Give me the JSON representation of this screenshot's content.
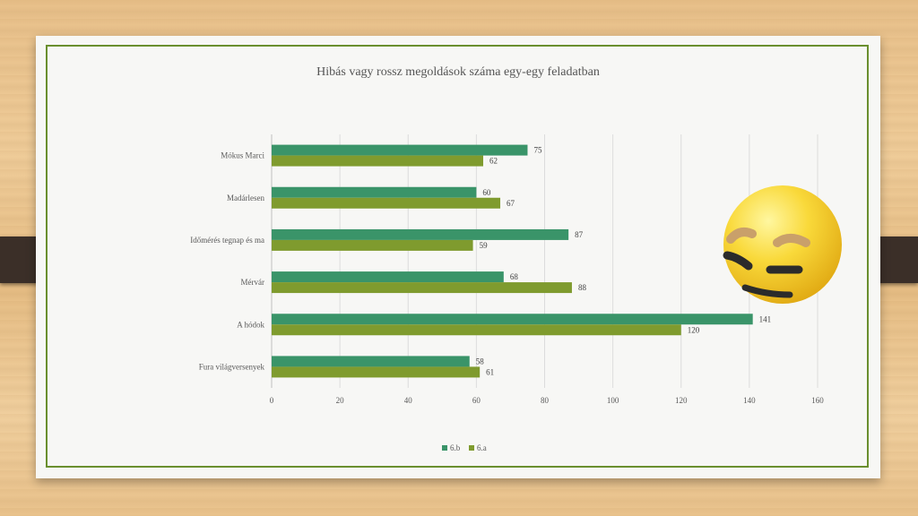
{
  "chart_data": {
    "type": "bar",
    "orientation": "horizontal",
    "title": "Hibás vagy rossz megoldások száma egy-egy feladatban",
    "categories": [
      "Mókus Marci",
      "Madárlesen",
      "Időmérés tegnap és ma",
      "Mérvár",
      "A hódok",
      "Fura világversenyek"
    ],
    "series": [
      {
        "name": "6.b",
        "color": "#3a9469",
        "values": [
          75,
          60,
          87,
          68,
          141,
          58
        ]
      },
      {
        "name": "6.a",
        "color": "#7f9b2e",
        "values": [
          62,
          67,
          59,
          88,
          120,
          61
        ]
      }
    ],
    "xlim": [
      0,
      160
    ],
    "xticks": [
      "0",
      "20",
      "40",
      "60",
      "80",
      "100",
      "120",
      "140",
      "160"
    ],
    "grid": "vertical",
    "legend_position": "bottom"
  },
  "decoration": {
    "emoji_icon": "smirking-face-emoji-icon"
  }
}
